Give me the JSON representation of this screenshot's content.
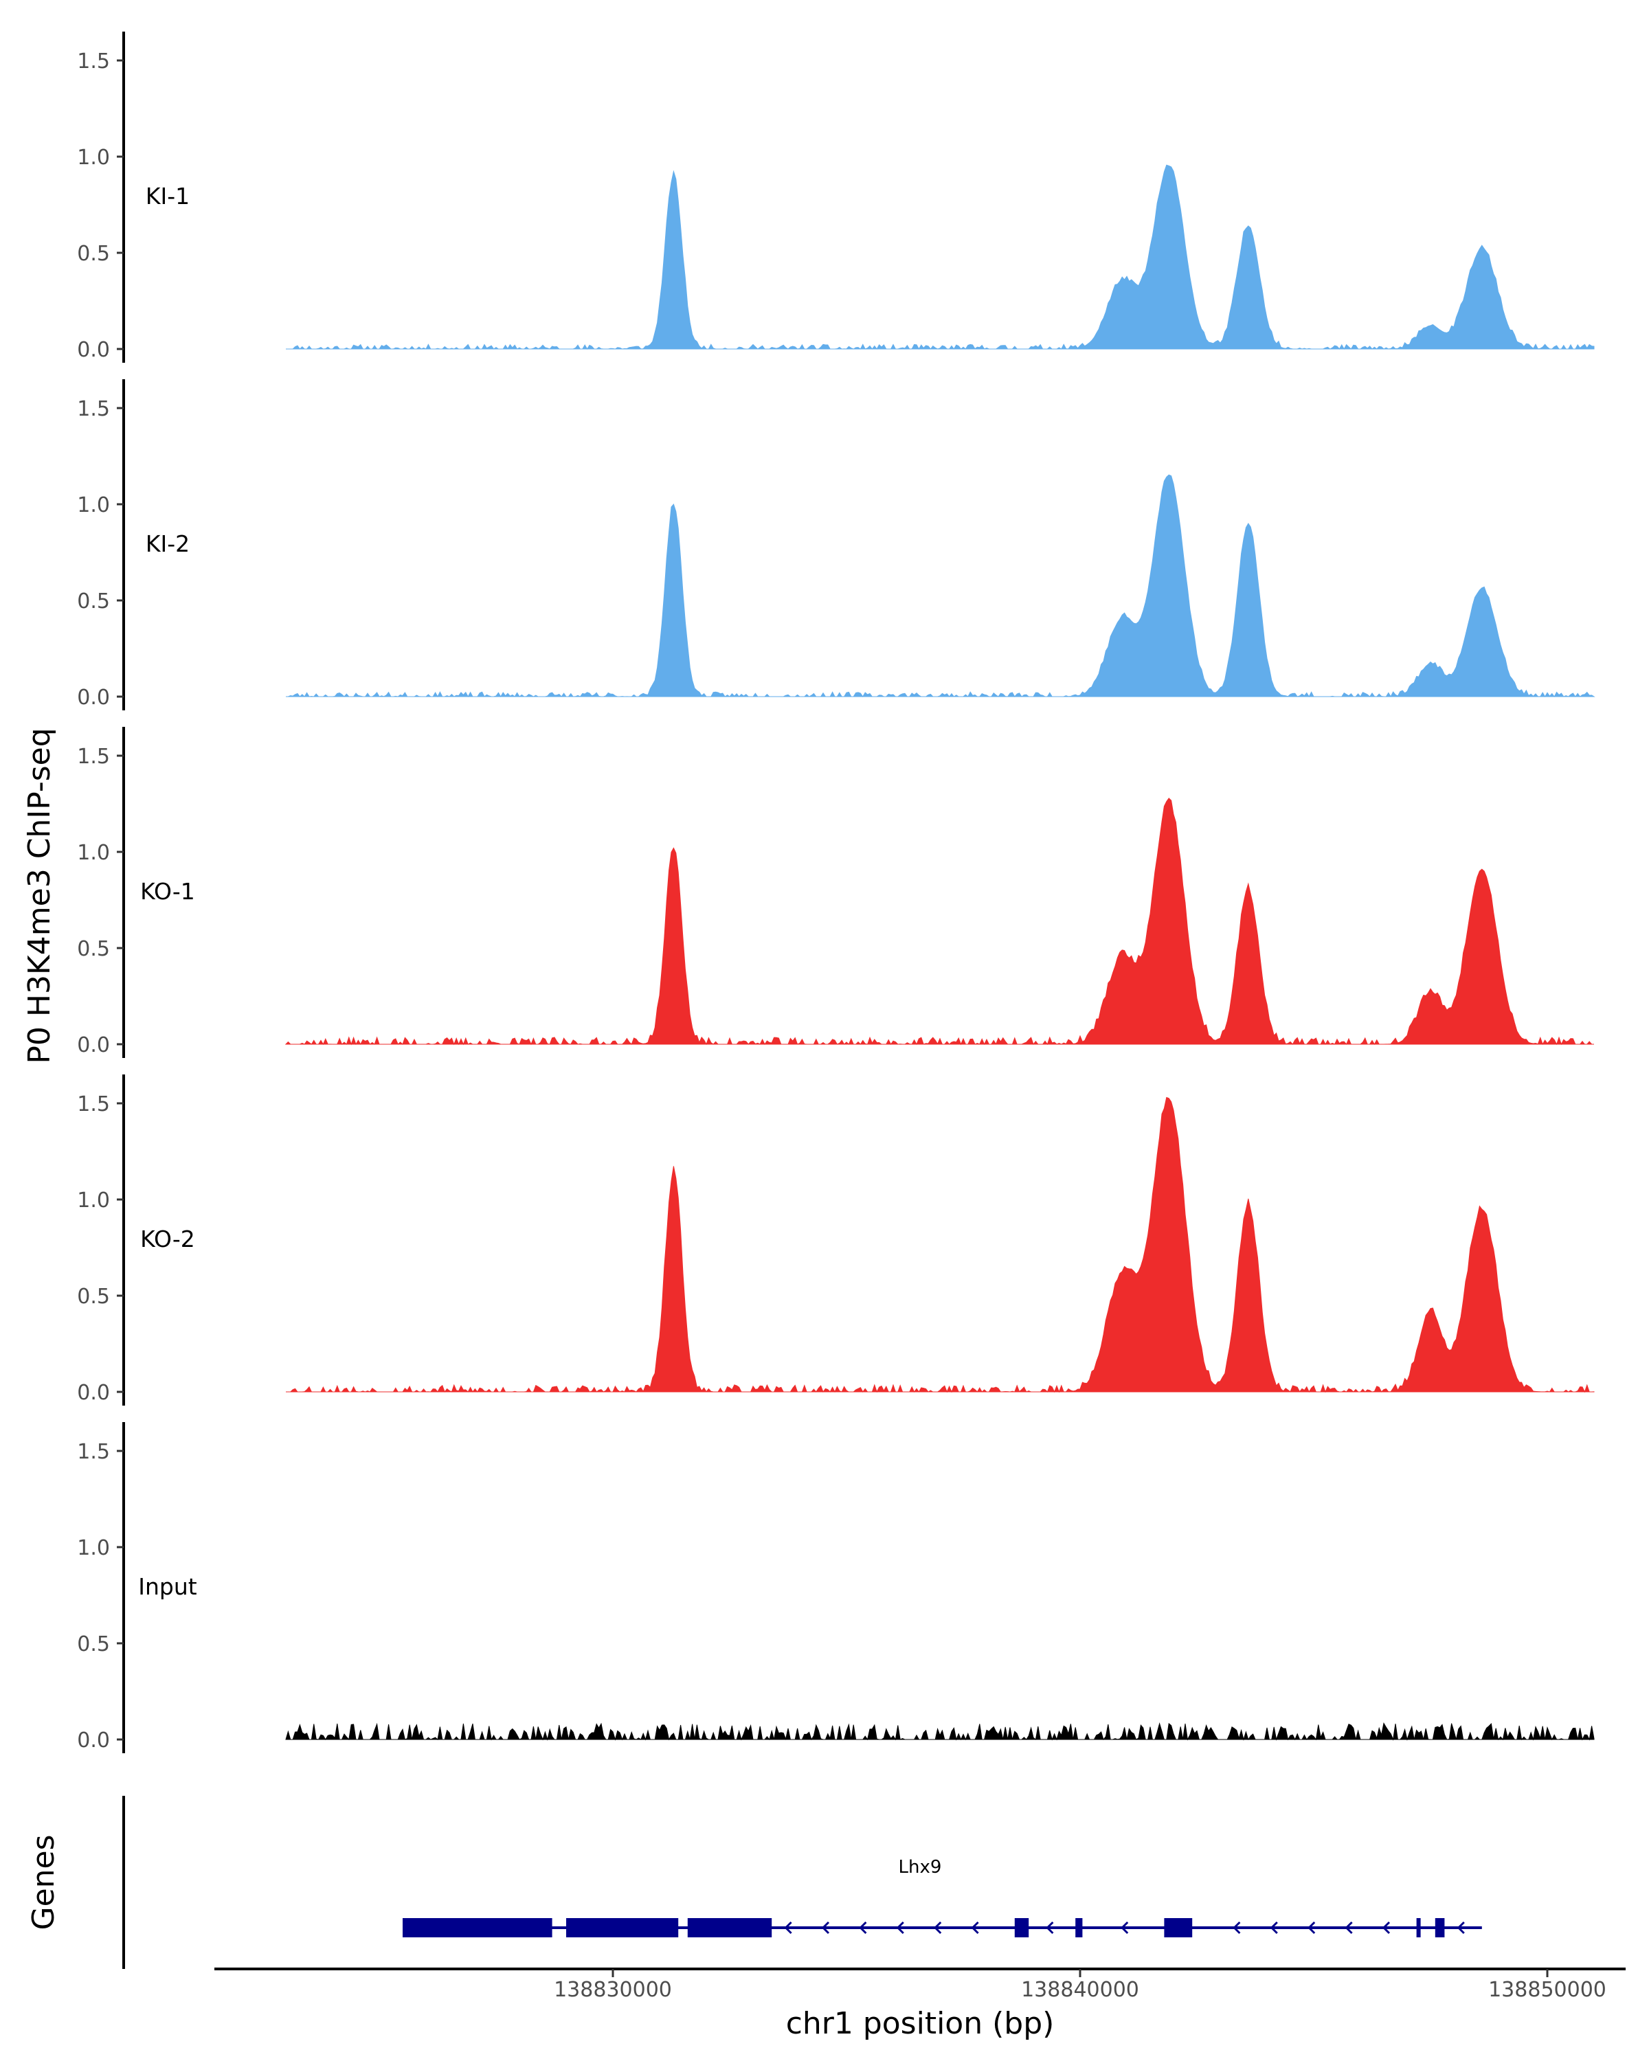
{
  "chart_data": {
    "type": "area",
    "ylabel": "P0 H3K4me3 ChIP-seq",
    "xlabel": "chr1 position (bp)",
    "ylim": [
      0,
      1.6
    ],
    "y_ticks": [
      "0.0",
      "0.5",
      "1.0",
      "1.5"
    ],
    "xlim": [
      138822500,
      138852000
    ],
    "x_ticks": [
      {
        "value": 138830000,
        "label": "138830000"
      },
      {
        "value": 138840000,
        "label": "138840000"
      },
      {
        "value": 138850000,
        "label": "138850000"
      }
    ],
    "x_range_signal": [
      138823000,
      138851000
    ],
    "tracks": [
      {
        "name": "KI-1",
        "color": "#62ADEB",
        "noise": 0.02,
        "seed": 11,
        "peaks": [
          [
            138831300,
            0.9,
            180
          ],
          [
            138840900,
            0.35,
            320
          ],
          [
            138841900,
            0.95,
            330
          ],
          [
            138843600,
            0.64,
            240
          ],
          [
            138847500,
            0.12,
            250
          ],
          [
            138848600,
            0.52,
            330
          ]
        ]
      },
      {
        "name": "KI-2",
        "color": "#62ADEB",
        "noise": 0.02,
        "seed": 23,
        "peaks": [
          [
            138831300,
            1.0,
            180
          ],
          [
            138840900,
            0.4,
            320
          ],
          [
            138841900,
            1.15,
            330
          ],
          [
            138843600,
            0.9,
            230
          ],
          [
            138847500,
            0.17,
            250
          ],
          [
            138848600,
            0.56,
            330
          ]
        ]
      },
      {
        "name": "KO-1",
        "color": "#EE2C2C",
        "noise": 0.03,
        "seed": 37,
        "peaks": [
          [
            138831300,
            1.02,
            180
          ],
          [
            138840900,
            0.45,
            320
          ],
          [
            138841900,
            1.25,
            330
          ],
          [
            138843600,
            0.8,
            230
          ],
          [
            138847500,
            0.27,
            260
          ],
          [
            138848600,
            0.91,
            330
          ]
        ]
      },
      {
        "name": "KO-2",
        "color": "#EE2C2C",
        "noise": 0.03,
        "seed": 53,
        "peaks": [
          [
            138831300,
            1.14,
            180
          ],
          [
            138840900,
            0.6,
            330
          ],
          [
            138841900,
            1.52,
            350
          ],
          [
            138843600,
            0.97,
            230
          ],
          [
            138847500,
            0.42,
            250
          ],
          [
            138848600,
            0.95,
            330
          ]
        ]
      },
      {
        "name": "Input",
        "color": "#000000",
        "noise": 0.07,
        "seed": 71,
        "peaks": []
      }
    ],
    "genes_label": "Genes",
    "gene": {
      "name": "Lhx9",
      "color": "#00008B",
      "start": 138825500,
      "end": 138848600,
      "strand": "-",
      "exons": [
        [
          138825500,
          138828700
        ],
        [
          138829000,
          138831400
        ],
        [
          138831600,
          138833400
        ],
        [
          138838600,
          138838900
        ],
        [
          138839900,
          138840050
        ],
        [
          138841800,
          138842400
        ],
        [
          138847200,
          138847260
        ],
        [
          138847600,
          138847800
        ]
      ]
    }
  }
}
